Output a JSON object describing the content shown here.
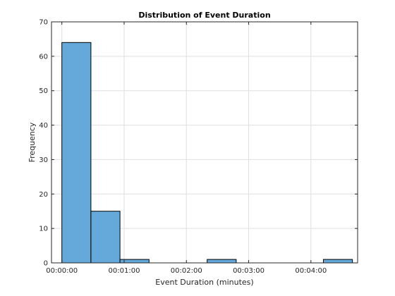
{
  "chart_data": {
    "type": "bar",
    "title": "Distribution of Event Duration",
    "xlabel": "Event Duration (minutes)",
    "ylabel": "Frequency",
    "x_tick_labels": [
      "00:00:00",
      "00:01:00",
      "00:02:00",
      "00:03:00",
      "00:04:00"
    ],
    "x_tick_values_seconds": [
      0,
      60,
      120,
      180,
      240
    ],
    "xlim_seconds": [
      -10,
      285
    ],
    "ylim": [
      0,
      70
    ],
    "y_ticks": [
      0,
      10,
      20,
      30,
      40,
      50,
      60,
      70
    ],
    "bins": [
      {
        "start_seconds": 0,
        "end_seconds": 28,
        "count": 64
      },
      {
        "start_seconds": 28,
        "end_seconds": 56,
        "count": 15
      },
      {
        "start_seconds": 56,
        "end_seconds": 84,
        "count": 1
      },
      {
        "start_seconds": 84,
        "end_seconds": 112,
        "count": 0
      },
      {
        "start_seconds": 112,
        "end_seconds": 140,
        "count": 0
      },
      {
        "start_seconds": 140,
        "end_seconds": 168,
        "count": 1
      },
      {
        "start_seconds": 168,
        "end_seconds": 196,
        "count": 0
      },
      {
        "start_seconds": 196,
        "end_seconds": 224,
        "count": 0
      },
      {
        "start_seconds": 224,
        "end_seconds": 252,
        "count": 0
      },
      {
        "start_seconds": 252,
        "end_seconds": 280,
        "count": 1
      }
    ],
    "grid": true,
    "bar_color": "#64a9d9",
    "bar_edge_color": "#000000"
  }
}
